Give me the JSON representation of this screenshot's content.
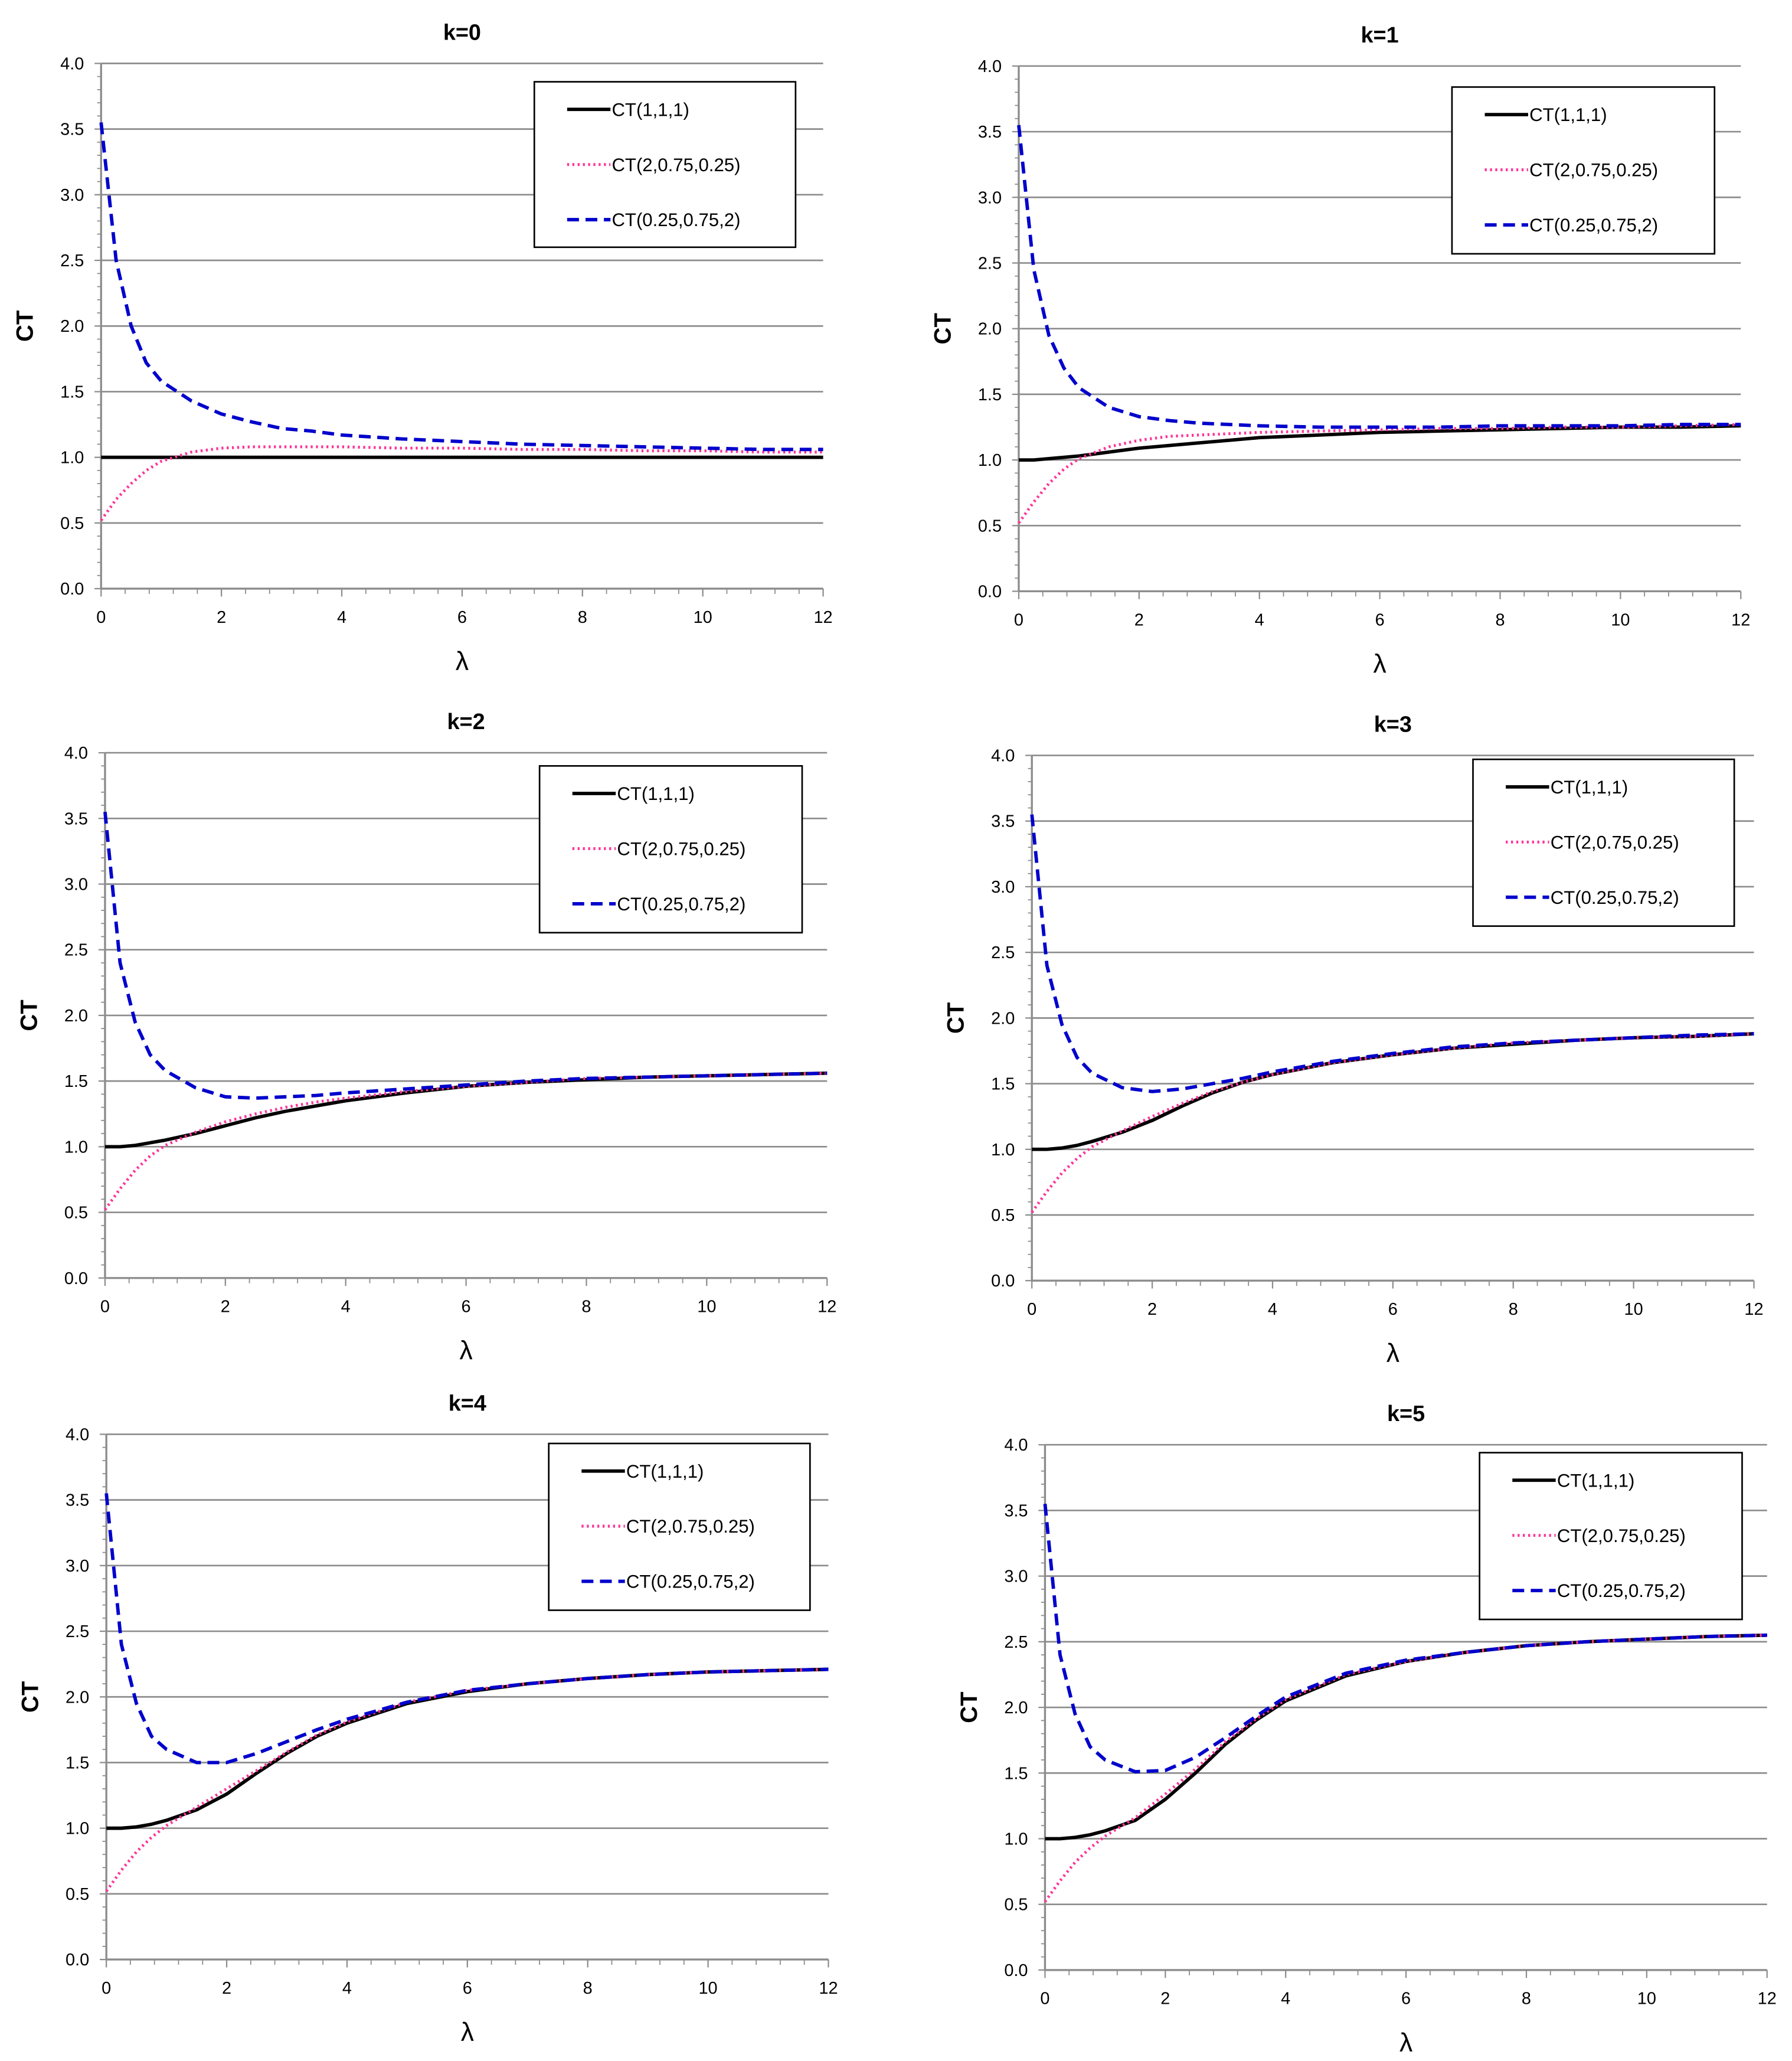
{
  "chart_data": [
    {
      "type": "line",
      "title": "k=0",
      "xlabel": "λ",
      "ylabel": "CT",
      "xlim": [
        0,
        12
      ],
      "ylim": [
        0,
        4
      ],
      "xticks": [
        0,
        2,
        4,
        6,
        8,
        10,
        12
      ],
      "yticks": [
        "0.0",
        "0.5",
        "1.0",
        "1.5",
        "2.0",
        "2.5",
        "3.0",
        "3.5",
        "4.0"
      ],
      "grid": "horizontal",
      "legend": "top-right",
      "x": [
        0,
        0.25,
        0.5,
        0.75,
        1,
        1.5,
        2,
        2.5,
        3,
        3.5,
        4,
        5,
        6,
        7,
        8,
        9,
        10,
        11,
        12
      ],
      "series": [
        {
          "name": "CT(1,1,1)",
          "values": [
            1,
            1,
            1,
            1,
            1,
            1,
            1,
            1,
            1,
            1,
            1,
            1,
            1,
            1,
            1,
            1,
            1,
            1,
            1
          ]
        },
        {
          "name": "CT(2,0.75,0.25)",
          "values": [
            0.52,
            0.68,
            0.8,
            0.9,
            0.97,
            1.04,
            1.07,
            1.08,
            1.08,
            1.08,
            1.08,
            1.07,
            1.07,
            1.06,
            1.06,
            1.05,
            1.05,
            1.04,
            1.04
          ]
        },
        {
          "name": "CT(0.25,0.75,2)",
          "values": [
            3.55,
            2.5,
            2.0,
            1.72,
            1.58,
            1.43,
            1.33,
            1.27,
            1.22,
            1.2,
            1.17,
            1.14,
            1.12,
            1.1,
            1.09,
            1.08,
            1.07,
            1.06,
            1.06
          ]
        }
      ]
    },
    {
      "type": "line",
      "title": "k=1",
      "xlabel": "λ",
      "ylabel": "CT",
      "xlim": [
        0,
        12
      ],
      "ylim": [
        0,
        4
      ],
      "xticks": [
        0,
        2,
        4,
        6,
        8,
        10,
        12
      ],
      "yticks": [
        "0.0",
        "0.5",
        "1.0",
        "1.5",
        "2.0",
        "2.5",
        "3.0",
        "3.5",
        "4.0"
      ],
      "grid": "horizontal",
      "legend": "top-right",
      "x": [
        0,
        0.25,
        0.5,
        0.75,
        1,
        1.5,
        2,
        2.5,
        3,
        3.5,
        4,
        5,
        6,
        7,
        8,
        9,
        10,
        11,
        12
      ],
      "series": [
        {
          "name": "CT(1,1,1)",
          "values": [
            1,
            1,
            1.01,
            1.02,
            1.03,
            1.06,
            1.09,
            1.11,
            1.13,
            1.15,
            1.17,
            1.19,
            1.21,
            1.22,
            1.23,
            1.24,
            1.25,
            1.25,
            1.26
          ]
        },
        {
          "name": "CT(2,0.75,0.25)",
          "values": [
            0.52,
            0.68,
            0.82,
            0.93,
            1.01,
            1.1,
            1.15,
            1.18,
            1.19,
            1.2,
            1.21,
            1.22,
            1.23,
            1.24,
            1.24,
            1.25,
            1.25,
            1.26,
            1.27
          ]
        },
        {
          "name": "CT(0.25,0.75,2)",
          "values": [
            3.55,
            2.45,
            1.95,
            1.7,
            1.55,
            1.4,
            1.33,
            1.3,
            1.28,
            1.27,
            1.26,
            1.25,
            1.25,
            1.25,
            1.26,
            1.26,
            1.26,
            1.27,
            1.27
          ]
        }
      ]
    },
    {
      "type": "line",
      "title": "k=2",
      "xlabel": "λ",
      "ylabel": "CT",
      "xlim": [
        0,
        12
      ],
      "ylim": [
        0,
        4
      ],
      "xticks": [
        0,
        2,
        4,
        6,
        8,
        10,
        12
      ],
      "yticks": [
        "0.0",
        "0.5",
        "1.0",
        "1.5",
        "2.0",
        "2.5",
        "3.0",
        "3.5",
        "4.0"
      ],
      "grid": "horizontal",
      "legend": "top-right",
      "x": [
        0,
        0.25,
        0.5,
        0.75,
        1,
        1.5,
        2,
        2.5,
        3,
        3.5,
        4,
        5,
        6,
        7,
        8,
        9,
        10,
        11,
        12
      ],
      "series": [
        {
          "name": "CT(1,1,1)",
          "values": [
            1,
            1,
            1.01,
            1.03,
            1.05,
            1.1,
            1.16,
            1.22,
            1.27,
            1.31,
            1.35,
            1.41,
            1.46,
            1.49,
            1.51,
            1.53,
            1.54,
            1.55,
            1.56
          ]
        },
        {
          "name": "CT(2,0.75,0.25)",
          "values": [
            0.52,
            0.68,
            0.82,
            0.93,
            1.01,
            1.11,
            1.19,
            1.25,
            1.3,
            1.34,
            1.37,
            1.42,
            1.46,
            1.49,
            1.52,
            1.53,
            1.54,
            1.55,
            1.56
          ]
        },
        {
          "name": "CT(0.25,0.75,2)",
          "values": [
            3.55,
            2.4,
            1.95,
            1.7,
            1.58,
            1.45,
            1.38,
            1.37,
            1.38,
            1.39,
            1.41,
            1.44,
            1.47,
            1.5,
            1.52,
            1.53,
            1.54,
            1.55,
            1.56
          ]
        }
      ]
    },
    {
      "type": "line",
      "title": "k=3",
      "xlabel": "λ",
      "ylabel": "CT",
      "xlim": [
        0,
        12
      ],
      "ylim": [
        0,
        4
      ],
      "xticks": [
        0,
        2,
        4,
        6,
        8,
        10,
        12
      ],
      "yticks": [
        "0.0",
        "0.5",
        "1.0",
        "1.5",
        "2.0",
        "2.5",
        "3.0",
        "3.5",
        "4.0"
      ],
      "grid": "horizontal",
      "legend": "top-right",
      "x": [
        0,
        0.25,
        0.5,
        0.75,
        1,
        1.5,
        2,
        2.5,
        3,
        3.5,
        4,
        5,
        6,
        7,
        8,
        9,
        10,
        11,
        12
      ],
      "series": [
        {
          "name": "CT(1,1,1)",
          "values": [
            1,
            1,
            1.01,
            1.03,
            1.06,
            1.13,
            1.22,
            1.33,
            1.43,
            1.51,
            1.57,
            1.66,
            1.72,
            1.77,
            1.8,
            1.83,
            1.85,
            1.86,
            1.88
          ]
        },
        {
          "name": "CT(2,0.75,0.25)",
          "values": [
            0.52,
            0.68,
            0.82,
            0.93,
            1.02,
            1.14,
            1.25,
            1.35,
            1.44,
            1.51,
            1.57,
            1.66,
            1.72,
            1.77,
            1.81,
            1.83,
            1.85,
            1.86,
            1.88
          ]
        },
        {
          "name": "CT(0.25,0.75,2)",
          "values": [
            3.55,
            2.4,
            1.95,
            1.7,
            1.58,
            1.47,
            1.44,
            1.46,
            1.5,
            1.54,
            1.59,
            1.67,
            1.73,
            1.78,
            1.81,
            1.83,
            1.85,
            1.87,
            1.88
          ]
        }
      ]
    },
    {
      "type": "line",
      "title": "k=4",
      "xlabel": "λ",
      "ylabel": "CT",
      "xlim": [
        0,
        12
      ],
      "ylim": [
        0,
        4
      ],
      "xticks": [
        0,
        2,
        4,
        6,
        8,
        10,
        12
      ],
      "yticks": [
        "0.0",
        "0.5",
        "1.0",
        "1.5",
        "2.0",
        "2.5",
        "3.0",
        "3.5",
        "4.0"
      ],
      "grid": "horizontal",
      "legend": "top-right",
      "x": [
        0,
        0.25,
        0.5,
        0.75,
        1,
        1.5,
        2,
        2.5,
        3,
        3.5,
        4,
        5,
        6,
        7,
        8,
        9,
        10,
        11,
        12
      ],
      "series": [
        {
          "name": "CT(1,1,1)",
          "values": [
            1,
            1,
            1.01,
            1.03,
            1.06,
            1.14,
            1.26,
            1.42,
            1.57,
            1.7,
            1.8,
            1.95,
            2.04,
            2.1,
            2.14,
            2.17,
            2.19,
            2.2,
            2.21
          ]
        },
        {
          "name": "CT(2,0.75,0.25)",
          "values": [
            0.52,
            0.68,
            0.82,
            0.93,
            1.02,
            1.16,
            1.3,
            1.44,
            1.58,
            1.71,
            1.81,
            1.96,
            2.05,
            2.1,
            2.14,
            2.17,
            2.19,
            2.2,
            2.21
          ]
        },
        {
          "name": "CT(0.25,0.75,2)",
          "values": [
            3.55,
            2.4,
            1.95,
            1.7,
            1.6,
            1.5,
            1.5,
            1.57,
            1.66,
            1.75,
            1.83,
            1.96,
            2.05,
            2.1,
            2.14,
            2.17,
            2.19,
            2.2,
            2.21
          ]
        }
      ]
    },
    {
      "type": "line",
      "title": "k=5",
      "xlabel": "λ",
      "ylabel": "CT",
      "xlim": [
        0,
        12
      ],
      "ylim": [
        0,
        4
      ],
      "xticks": [
        0,
        2,
        4,
        6,
        8,
        10,
        12
      ],
      "yticks": [
        "0.0",
        "0.5",
        "1.0",
        "1.5",
        "2.0",
        "2.5",
        "3.0",
        "3.5",
        "4.0"
      ],
      "grid": "horizontal",
      "legend": "top-right",
      "x": [
        0,
        0.25,
        0.5,
        0.75,
        1,
        1.5,
        2,
        2.5,
        3,
        3.5,
        4,
        5,
        6,
        7,
        8,
        9,
        10,
        11,
        12
      ],
      "series": [
        {
          "name": "CT(1,1,1)",
          "values": [
            1,
            1,
            1.01,
            1.03,
            1.06,
            1.14,
            1.3,
            1.5,
            1.72,
            1.9,
            2.05,
            2.24,
            2.35,
            2.42,
            2.47,
            2.5,
            2.52,
            2.54,
            2.55
          ]
        },
        {
          "name": "CT(2,0.75,0.25)",
          "values": [
            0.52,
            0.68,
            0.82,
            0.93,
            1.02,
            1.16,
            1.34,
            1.53,
            1.74,
            1.91,
            2.06,
            2.25,
            2.35,
            2.42,
            2.47,
            2.5,
            2.52,
            2.54,
            2.55
          ]
        },
        {
          "name": "CT(0.25,0.75,2)",
          "values": [
            3.55,
            2.4,
            1.95,
            1.7,
            1.6,
            1.51,
            1.52,
            1.62,
            1.77,
            1.93,
            2.08,
            2.26,
            2.36,
            2.42,
            2.47,
            2.5,
            2.52,
            2.54,
            2.55
          ]
        }
      ]
    }
  ],
  "series_styles": [
    {
      "color": "#000000",
      "dash": "solid"
    },
    {
      "color": "#ff3399",
      "dash": "dotted"
    },
    {
      "color": "#0000cc",
      "dash": "dashed"
    }
  ]
}
